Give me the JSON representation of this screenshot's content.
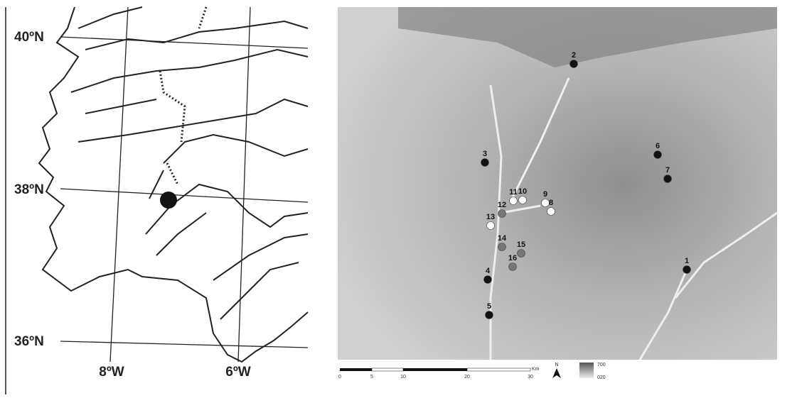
{
  "location_map": {
    "lat_labels": [
      "40ºN",
      "38ºN",
      "36ºN"
    ],
    "lon_labels": [
      "8ºW",
      "6ºW"
    ]
  },
  "relief_map": {
    "sites": [
      {
        "label": "1",
        "color": "#111"
      },
      {
        "label": "2",
        "color": "#111"
      },
      {
        "label": "3",
        "color": "#111"
      },
      {
        "label": "4",
        "color": "#111"
      },
      {
        "label": "5",
        "color": "#111"
      },
      {
        "label": "6",
        "color": "#111"
      },
      {
        "label": "7",
        "color": "#111"
      },
      {
        "label": "8",
        "color": "#fff"
      },
      {
        "label": "9",
        "color": "#fff"
      },
      {
        "label": "10",
        "color": "#fff"
      },
      {
        "label": "11",
        "color": "#fff"
      },
      {
        "label": "12",
        "color": "#777"
      },
      {
        "label": "13",
        "color": "#fff"
      },
      {
        "label": "14",
        "color": "#777"
      },
      {
        "label": "15",
        "color": "#777"
      },
      {
        "label": "16",
        "color": "#777"
      }
    ],
    "scale_labels": [
      "0",
      "5",
      "10",
      "20",
      "30"
    ],
    "scale_unit": "Km",
    "north": "N",
    "legend": {
      "high": "700",
      "low": "020"
    }
  }
}
